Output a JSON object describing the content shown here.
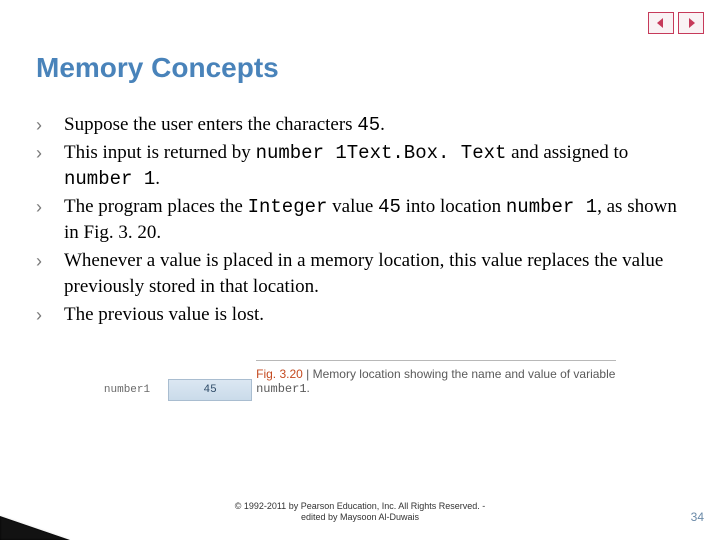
{
  "title": "Memory Concepts",
  "nav": {
    "prev_icon_fill": "#c63a5a",
    "next_icon_fill": "#c63a5a"
  },
  "bullets": [
    {
      "parts": [
        {
          "t": "Suppose the user enters the characters "
        },
        {
          "t": "45",
          "mono": true
        },
        {
          "t": "."
        }
      ]
    },
    {
      "parts": [
        {
          "t": "This input is returned by "
        },
        {
          "t": "number 1Text.Box. Text",
          "mono": true
        },
        {
          "t": " and assigned to "
        },
        {
          "t": "number 1",
          "mono": true
        },
        {
          "t": "."
        }
      ]
    },
    {
      "parts": [
        {
          "t": "The program places the "
        },
        {
          "t": "Integer",
          "mono": true
        },
        {
          "t": " value "
        },
        {
          "t": "45",
          "mono": true
        },
        {
          "t": " into location "
        },
        {
          "t": "number 1",
          "mono": true
        },
        {
          "t": ", as shown in Fig. 3. 20."
        }
      ]
    },
    {
      "parts": [
        {
          "t": "Whenever a value is placed in a memory location, this value replaces the value previously stored in that location."
        }
      ]
    },
    {
      "parts": [
        {
          "t": "The previous value is lost."
        }
      ]
    }
  ],
  "figure": {
    "mem_label": "number1",
    "mem_value": "45",
    "caption_prefix": "Fig. 3.20",
    "caption_sep": " | ",
    "caption_text_a": "Memory location showing the name and value of variable ",
    "caption_mono": "number1",
    "caption_text_b": "."
  },
  "copyright_line1": "© 1992-2011 by Pearson Education, Inc. All Rights Reserved. -",
  "copyright_line2": "edited by Maysoon Al-Duwais",
  "page_number": "34",
  "colors": {
    "title": "#4983ba",
    "bullet_marker": "#7a7a7a",
    "mem_box_bg_top": "#dbe7f2",
    "mem_box_bg_bottom": "#cadbea",
    "mem_box_border": "#a9bdd0",
    "fig_num": "#c44a20",
    "page_num": "#6b8aa8"
  }
}
